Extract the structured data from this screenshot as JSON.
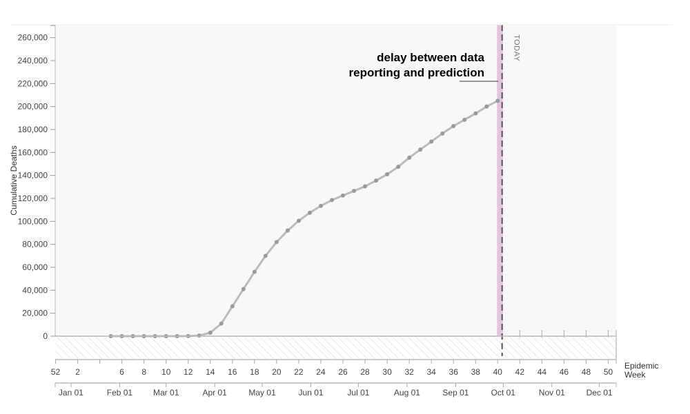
{
  "chart_data": {
    "type": "line",
    "ylabel": "Cumulative Deaths",
    "xlabel_line1": "Epidemic",
    "xlabel_line2": "Week",
    "ylim": [
      0,
      270000
    ],
    "yticks": [
      0,
      20000,
      40000,
      60000,
      80000,
      100000,
      120000,
      140000,
      160000,
      180000,
      200000,
      220000,
      240000,
      260000
    ],
    "ytick_labels": [
      "0",
      "20,000",
      "40,000",
      "60,000",
      "80,000",
      "100,000",
      "120,000",
      "140,000",
      "160,000",
      "180,000",
      "200,000",
      "220,000",
      "240,000",
      "260,000"
    ],
    "week_ticks": [
      {
        "pos": 0,
        "label": "52"
      },
      {
        "pos": 2,
        "label": "2"
      },
      {
        "pos": 6,
        "label": "6"
      },
      {
        "pos": 8,
        "label": "8"
      },
      {
        "pos": 10,
        "label": "10"
      },
      {
        "pos": 12,
        "label": "12"
      },
      {
        "pos": 14,
        "label": "14"
      },
      {
        "pos": 16,
        "label": "16"
      },
      {
        "pos": 18,
        "label": "18"
      },
      {
        "pos": 20,
        "label": "20"
      },
      {
        "pos": 22,
        "label": "22"
      },
      {
        "pos": 24,
        "label": "24"
      },
      {
        "pos": 26,
        "label": "26"
      },
      {
        "pos": 28,
        "label": "28"
      },
      {
        "pos": 30,
        "label": "30"
      },
      {
        "pos": 32,
        "label": "32"
      },
      {
        "pos": 34,
        "label": "34"
      },
      {
        "pos": 36,
        "label": "36"
      },
      {
        "pos": 38,
        "label": "38"
      },
      {
        "pos": 40,
        "label": "40"
      },
      {
        "pos": 42,
        "label": "42"
      },
      {
        "pos": 44,
        "label": "44"
      },
      {
        "pos": 46,
        "label": "46"
      },
      {
        "pos": 48,
        "label": "48"
      },
      {
        "pos": 50,
        "label": "50"
      }
    ],
    "month_ticks": [
      {
        "pos": 1.4,
        "label": "Jan 01"
      },
      {
        "pos": 5.8,
        "label": "Feb 01"
      },
      {
        "pos": 10.0,
        "label": "Mar 01"
      },
      {
        "pos": 14.4,
        "label": "Apr 01"
      },
      {
        "pos": 18.7,
        "label": "May 01"
      },
      {
        "pos": 23.1,
        "label": "Jun 01"
      },
      {
        "pos": 27.4,
        "label": "Jul 01"
      },
      {
        "pos": 31.8,
        "label": "Aug 01"
      },
      {
        "pos": 36.2,
        "label": "Sep 01"
      },
      {
        "pos": 40.5,
        "label": "Oct 01"
      },
      {
        "pos": 44.9,
        "label": "Nov 01"
      },
      {
        "pos": 49.2,
        "label": "Dec 01"
      }
    ],
    "x": [
      5,
      6,
      7,
      8,
      9,
      10,
      11,
      12,
      13,
      14,
      15,
      16,
      17,
      18,
      19,
      20,
      21,
      22,
      23,
      24,
      25,
      26,
      27,
      28,
      29,
      30,
      31,
      32,
      33,
      34,
      35,
      36,
      37,
      38,
      39,
      40
    ],
    "y": [
      0,
      0,
      0,
      0,
      0,
      0,
      0,
      50,
      500,
      3000,
      11000,
      26000,
      41000,
      56000,
      70000,
      82000,
      92000,
      100500,
      107500,
      113500,
      118500,
      122500,
      126500,
      130500,
      135500,
      141000,
      147500,
      155500,
      162500,
      169500,
      176500,
      183000,
      188500,
      194000,
      200000,
      205000
    ],
    "today_week": 40.4,
    "delay_band": [
      40.0,
      40.4
    ],
    "today_label": "TODAY",
    "annotation_line1": "delay between data",
    "annotation_line2": "reporting and prediction",
    "colors": {
      "line": "#bbbbbb",
      "marker": "#9a9a9a",
      "plot_bg": "#f7f8fa",
      "delay_band": "#e3c3df",
      "today_line": "#555555",
      "hatch": "#dddddd"
    }
  }
}
